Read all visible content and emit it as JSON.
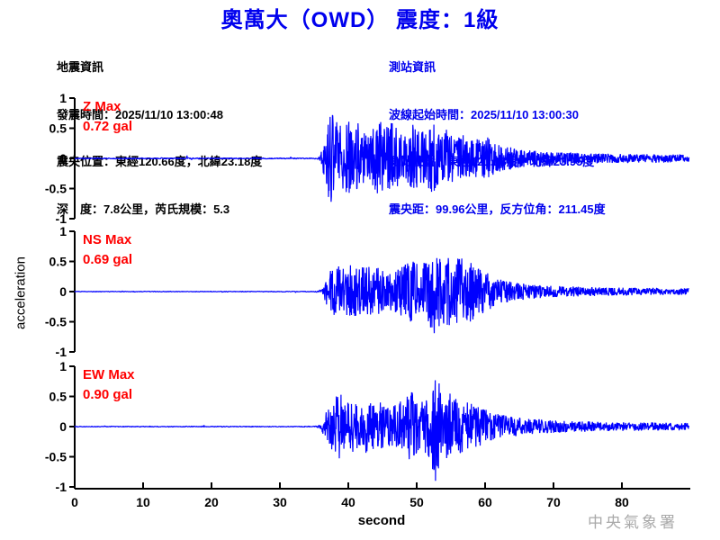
{
  "title": "奧萬大（OWD） 震度：1級",
  "earthquake_info": {
    "heading": "地震資訊",
    "lines": [
      "發震時間：2025/11/10 13:00:48",
      "震央位置：東經120.66度，北緯23.18度",
      "深　度：7.8公里，芮氏規模：5.3"
    ]
  },
  "station_info": {
    "heading": "測站資訊",
    "lines": [
      "波線起始時間：2025/11/10 13:00:30",
      "測站位置：東經121.18度，北緯23.95度",
      "震央距：99.96公里，反方位角：211.45度"
    ]
  },
  "watermark": "中央氣象署",
  "colors": {
    "title": "#0000EE",
    "station_text": "#0000EE",
    "trace": "#0000FF",
    "max_label": "#FF0000",
    "axis": "#000000",
    "watermark": "#A9A9A9"
  },
  "chart_data": {
    "type": "line",
    "kind": "seismogram",
    "title": "奧萬大（OWD） 震度：1級",
    "xlabel": "second",
    "ylabel": "acceleration",
    "xlim": [
      0,
      90
    ],
    "ylim": [
      -1,
      1
    ],
    "xticks": [
      "0",
      "10",
      "20",
      "30",
      "40",
      "50",
      "60",
      "70",
      "80"
    ],
    "yticks": [
      "1",
      "0.5",
      "0",
      "-0.5",
      "-1"
    ],
    "event_onset_s": 36,
    "traces": [
      {
        "component": "Z",
        "label": "Z Max",
        "value_label": "0.72 gal",
        "max_gal": 0.72,
        "envelope": [
          [
            0,
            0.008
          ],
          [
            35,
            0.008
          ],
          [
            35.8,
            0.02
          ],
          [
            36.3,
            0.18
          ],
          [
            37,
            0.45
          ],
          [
            37.5,
            0.72
          ],
          [
            38,
            0.5
          ],
          [
            39,
            0.42
          ],
          [
            39.8,
            0.52
          ],
          [
            40.5,
            0.42
          ],
          [
            41.5,
            0.48
          ],
          [
            42.5,
            0.3
          ],
          [
            43.5,
            0.42
          ],
          [
            44.5,
            0.5
          ],
          [
            45.5,
            0.4
          ],
          [
            46.5,
            0.48
          ],
          [
            47.5,
            0.32
          ],
          [
            48.5,
            0.28
          ],
          [
            49.5,
            0.45
          ],
          [
            50.5,
            0.32
          ],
          [
            51.5,
            0.4
          ],
          [
            52.5,
            0.46
          ],
          [
            53.5,
            0.32
          ],
          [
            54.5,
            0.4
          ],
          [
            55.5,
            0.28
          ],
          [
            56.5,
            0.34
          ],
          [
            57.5,
            0.26
          ],
          [
            58.5,
            0.3
          ],
          [
            59.5,
            0.24
          ],
          [
            60.5,
            0.28
          ],
          [
            61.5,
            0.18
          ],
          [
            63,
            0.16
          ],
          [
            65,
            0.12
          ],
          [
            67,
            0.1
          ],
          [
            70,
            0.08
          ],
          [
            74,
            0.07
          ],
          [
            78,
            0.06
          ],
          [
            83,
            0.055
          ],
          [
            90,
            0.05
          ]
        ]
      },
      {
        "component": "NS",
        "label": "NS Max",
        "value_label": "0.69 gal",
        "max_gal": 0.69,
        "envelope": [
          [
            0,
            0.006
          ],
          [
            35,
            0.006
          ],
          [
            36,
            0.03
          ],
          [
            36.8,
            0.2
          ],
          [
            37.5,
            0.35
          ],
          [
            38.5,
            0.42
          ],
          [
            39.5,
            0.34
          ],
          [
            40.5,
            0.44
          ],
          [
            41.5,
            0.34
          ],
          [
            42.5,
            0.42
          ],
          [
            43.5,
            0.36
          ],
          [
            44.5,
            0.42
          ],
          [
            45.5,
            0.3
          ],
          [
            46.5,
            0.3
          ],
          [
            47.5,
            0.36
          ],
          [
            48.5,
            0.44
          ],
          [
            49.5,
            0.5
          ],
          [
            50.5,
            0.42
          ],
          [
            51.5,
            0.5
          ],
          [
            52.3,
            0.62
          ],
          [
            52.8,
            0.69
          ],
          [
            53.5,
            0.48
          ],
          [
            54.5,
            0.56
          ],
          [
            55.5,
            0.44
          ],
          [
            56.4,
            0.69
          ],
          [
            57.2,
            0.44
          ],
          [
            58,
            0.48
          ],
          [
            59,
            0.38
          ],
          [
            60,
            0.32
          ],
          [
            61,
            0.26
          ],
          [
            62,
            0.2
          ],
          [
            63.5,
            0.16
          ],
          [
            65,
            0.13
          ],
          [
            67,
            0.11
          ],
          [
            70,
            0.09
          ],
          [
            74,
            0.075
          ],
          [
            78,
            0.065
          ],
          [
            83,
            0.055
          ],
          [
            90,
            0.05
          ]
        ]
      },
      {
        "component": "EW",
        "label": "EW Max",
        "value_label": "0.90 gal",
        "max_gal": 0.9,
        "envelope": [
          [
            0,
            0.007
          ],
          [
            35,
            0.007
          ],
          [
            36,
            0.04
          ],
          [
            36.8,
            0.25
          ],
          [
            37.8,
            0.45
          ],
          [
            38.8,
            0.55
          ],
          [
            39.5,
            0.38
          ],
          [
            40.5,
            0.42
          ],
          [
            41.5,
            0.36
          ],
          [
            42.5,
            0.44
          ],
          [
            43.5,
            0.36
          ],
          [
            44.5,
            0.42
          ],
          [
            45.5,
            0.34
          ],
          [
            46.5,
            0.32
          ],
          [
            47.5,
            0.4
          ],
          [
            48.5,
            0.48
          ],
          [
            49.3,
            0.58
          ],
          [
            50,
            0.44
          ],
          [
            51,
            0.4
          ],
          [
            52,
            0.52
          ],
          [
            52.7,
            0.9
          ],
          [
            53.3,
            0.72
          ],
          [
            54,
            0.5
          ],
          [
            55,
            0.55
          ],
          [
            56,
            0.44
          ],
          [
            57,
            0.4
          ],
          [
            58,
            0.38
          ],
          [
            59,
            0.32
          ],
          [
            60,
            0.28
          ],
          [
            61,
            0.23
          ],
          [
            62,
            0.2
          ],
          [
            63.5,
            0.17
          ],
          [
            65,
            0.14
          ],
          [
            67,
            0.12
          ],
          [
            70,
            0.1
          ],
          [
            74,
            0.085
          ],
          [
            78,
            0.075
          ],
          [
            83,
            0.065
          ],
          [
            90,
            0.06
          ]
        ]
      }
    ]
  }
}
